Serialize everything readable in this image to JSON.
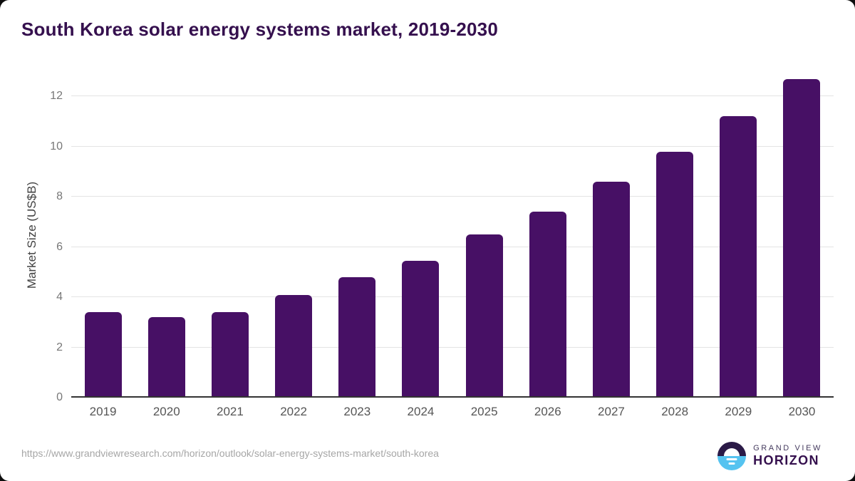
{
  "chart_data": {
    "type": "bar",
    "title": "South Korea solar energy systems market, 2019-2030",
    "categories": [
      "2019",
      "2020",
      "2021",
      "2022",
      "2023",
      "2024",
      "2025",
      "2026",
      "2027",
      "2028",
      "2029",
      "2030"
    ],
    "values": [
      3.4,
      3.2,
      3.4,
      4.1,
      4.8,
      5.45,
      6.5,
      7.4,
      8.6,
      9.8,
      11.2,
      12.7
    ],
    "xlabel": "",
    "ylabel": "Market Size (US$B)",
    "ylim": [
      0,
      13
    ],
    "yticks": [
      0,
      2,
      4,
      6,
      8,
      10,
      12
    ],
    "grid": true,
    "legend": "none",
    "bar_color": "#471065"
  },
  "footer": {
    "source_url": "https://www.grandviewresearch.com/horizon/outlook/solar-energy-systems-market/south-korea",
    "logo": {
      "line1": "GRAND VIEW",
      "line2": "HORIZON"
    }
  },
  "colors": {
    "bar": "#471065",
    "title_text": "#35104e",
    "gridline": "#e4e4e4",
    "axis_line": "#333333",
    "y_tick_label": "#777777",
    "x_tick_label": "#555555",
    "source_url_text": "#a6a6a6",
    "logo_dark": "#2b1a47",
    "logo_blue": "#55c3f0"
  }
}
